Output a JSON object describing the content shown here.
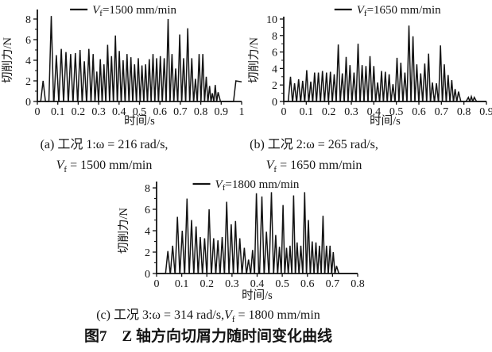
{
  "style": {
    "ink": "#141414",
    "background": "#ffffff"
  },
  "figure_title": "图7　Z 轴方向切屑力随时间变化曲线",
  "captions": {
    "a": {
      "line1": "(a) 工况 1:ω = 216 rad/s,",
      "vf_var": "V",
      "vf_sub": "f",
      "line2_rest": " = 1500 mm/min"
    },
    "b": {
      "line1": "(b) 工况 2:ω = 265 rad/s,",
      "vf_var": "V",
      "vf_sub": "f",
      "line2_rest": " = 1650 mm/min"
    },
    "c": {
      "prefix": "(c) 工况 3:ω = 314 rad/s,",
      "vf_var": "V",
      "vf_sub": "f",
      "rest": " = 1800 mm/min"
    }
  },
  "chart_data": [
    {
      "id": "a",
      "type": "line",
      "legend": {
        "var": "V",
        "sub": "f",
        "rest": "=1500 mm/min"
      },
      "xlabel": "时间/s",
      "ylabel": "切削力/N",
      "xlim": [
        0,
        1
      ],
      "ylim": [
        0,
        8
      ],
      "xticks": [
        "0",
        "0.1",
        "0.2",
        "0.3",
        "0.4",
        "0.5",
        "0.6",
        "0.7",
        "0.8",
        "0.9",
        "1"
      ],
      "yticks": [
        "0",
        "2",
        "4",
        "6",
        "8"
      ],
      "grid": false,
      "legend_position": "top",
      "peaks": [
        [
          0.028,
          2.0
        ],
        [
          0.068,
          8.3
        ],
        [
          0.093,
          4.5
        ],
        [
          0.117,
          5.1
        ],
        [
          0.14,
          4.8
        ],
        [
          0.163,
          4.6
        ],
        [
          0.186,
          4.7
        ],
        [
          0.209,
          5.0
        ],
        [
          0.23,
          3.9
        ],
        [
          0.252,
          5.1
        ],
        [
          0.273,
          4.6
        ],
        [
          0.291,
          2.9
        ],
        [
          0.308,
          4.1
        ],
        [
          0.326,
          3.6
        ],
        [
          0.344,
          5.5
        ],
        [
          0.363,
          4.4
        ],
        [
          0.382,
          6.4
        ],
        [
          0.401,
          4.9
        ],
        [
          0.42,
          4.0
        ],
        [
          0.439,
          4.6
        ],
        [
          0.458,
          4.3
        ],
        [
          0.476,
          3.6
        ],
        [
          0.494,
          4.2
        ],
        [
          0.512,
          3.5
        ],
        [
          0.53,
          3.6
        ],
        [
          0.548,
          4.1
        ],
        [
          0.566,
          4.6
        ],
        [
          0.584,
          4.2
        ],
        [
          0.602,
          4.4
        ],
        [
          0.621,
          4.2
        ],
        [
          0.64,
          8.0
        ],
        [
          0.659,
          4.6
        ],
        [
          0.677,
          3.2
        ],
        [
          0.697,
          6.5
        ],
        [
          0.716,
          4.2
        ],
        [
          0.736,
          7.1
        ],
        [
          0.756,
          4.2
        ],
        [
          0.774,
          2.2
        ],
        [
          0.792,
          4.6
        ],
        [
          0.81,
          4.6
        ],
        [
          0.827,
          2.4
        ],
        [
          0.843,
          1.5
        ],
        [
          0.857,
          0.8
        ],
        [
          0.871,
          1.6
        ],
        [
          0.885,
          0.9
        ],
        [
          0.972,
          2.0
        ]
      ],
      "end_value": 1.9
    },
    {
      "id": "b",
      "type": "line",
      "legend": {
        "var": "V",
        "sub": "f",
        "rest": "=1650 mm/min"
      },
      "xlabel": "时间/s",
      "ylabel": "切削力/N",
      "xlim": [
        0,
        0.9
      ],
      "ylim": [
        0,
        10
      ],
      "xticks": [
        "0",
        "0.1",
        "0.2",
        "0.3",
        "0.4",
        "0.5",
        "0.6",
        "0.7",
        "0.8",
        "0.9"
      ],
      "yticks": [
        "0",
        "2",
        "4",
        "6",
        "8",
        "10"
      ],
      "grid": false,
      "legend_position": "top",
      "peaks": [
        [
          0.03,
          3.0
        ],
        [
          0.048,
          2.2
        ],
        [
          0.066,
          2.7
        ],
        [
          0.084,
          2.5
        ],
        [
          0.102,
          3.8
        ],
        [
          0.12,
          2.4
        ],
        [
          0.137,
          3.5
        ],
        [
          0.154,
          3.5
        ],
        [
          0.172,
          3.7
        ],
        [
          0.19,
          3.5
        ],
        [
          0.207,
          3.6
        ],
        [
          0.224,
          3.3
        ],
        [
          0.242,
          6.9
        ],
        [
          0.26,
          3.4
        ],
        [
          0.277,
          5.4
        ],
        [
          0.294,
          4.4
        ],
        [
          0.312,
          3.5
        ],
        [
          0.33,
          7.0
        ],
        [
          0.348,
          4.4
        ],
        [
          0.365,
          4.3
        ],
        [
          0.383,
          5.5
        ],
        [
          0.4,
          4.3
        ],
        [
          0.417,
          2.3
        ],
        [
          0.434,
          3.7
        ],
        [
          0.451,
          3.6
        ],
        [
          0.468,
          3.3
        ],
        [
          0.485,
          2.1
        ],
        [
          0.503,
          5.3
        ],
        [
          0.52,
          4.7
        ],
        [
          0.538,
          3.5
        ],
        [
          0.556,
          9.2
        ],
        [
          0.574,
          7.9
        ],
        [
          0.591,
          4.5
        ],
        [
          0.608,
          3.4
        ],
        [
          0.626,
          4.6
        ],
        [
          0.643,
          5.8
        ],
        [
          0.66,
          2.3
        ],
        [
          0.678,
          2.2
        ],
        [
          0.696,
          6.8
        ],
        [
          0.713,
          4.5
        ],
        [
          0.73,
          3.2
        ],
        [
          0.746,
          2.6
        ],
        [
          0.761,
          1.5
        ],
        [
          0.776,
          1.2
        ],
        [
          0.82,
          0.5
        ],
        [
          0.833,
          0.6
        ],
        [
          0.846,
          0.5
        ]
      ],
      "end_value": null
    },
    {
      "id": "c",
      "type": "line",
      "legend": {
        "var": "V",
        "sub": "f",
        "rest": "=1800 mm/min"
      },
      "xlabel": "时间/s",
      "ylabel": "切削力/N",
      "xlim": [
        0,
        0.8
      ],
      "ylim": [
        0,
        8
      ],
      "xticks": [
        "0",
        "0.1",
        "0.2",
        "0.3",
        "0.4",
        "0.5",
        "0.6",
        "0.7",
        "0.8"
      ],
      "yticks": [
        "0",
        "2",
        "4",
        "6",
        "8"
      ],
      "grid": false,
      "legend_position": "top",
      "peaks": [
        [
          0.045,
          2.1
        ],
        [
          0.064,
          2.6
        ],
        [
          0.083,
          5.3
        ],
        [
          0.102,
          4.0
        ],
        [
          0.121,
          7.0
        ],
        [
          0.139,
          5.0
        ],
        [
          0.157,
          4.4
        ],
        [
          0.174,
          3.4
        ],
        [
          0.191,
          3.3
        ],
        [
          0.209,
          6.0
        ],
        [
          0.227,
          3.3
        ],
        [
          0.244,
          3.1
        ],
        [
          0.261,
          3.4
        ],
        [
          0.279,
          6.7
        ],
        [
          0.297,
          4.6
        ],
        [
          0.314,
          4.9
        ],
        [
          0.331,
          3.3
        ],
        [
          0.349,
          2.4
        ],
        [
          0.366,
          1.3
        ],
        [
          0.382,
          2.2
        ],
        [
          0.397,
          7.5
        ],
        [
          0.419,
          7.2
        ],
        [
          0.437,
          3.9
        ],
        [
          0.457,
          7.6
        ],
        [
          0.474,
          3.6
        ],
        [
          0.489,
          2.5
        ],
        [
          0.503,
          6.4
        ],
        [
          0.517,
          2.4
        ],
        [
          0.531,
          2.6
        ],
        [
          0.545,
          7.3
        ],
        [
          0.559,
          2.9
        ],
        [
          0.574,
          2.6
        ],
        [
          0.589,
          7.6
        ],
        [
          0.604,
          5.0
        ],
        [
          0.619,
          3.0
        ],
        [
          0.634,
          2.9
        ],
        [
          0.648,
          2.6
        ],
        [
          0.662,
          5.4
        ],
        [
          0.676,
          2.6
        ],
        [
          0.69,
          2.6
        ],
        [
          0.703,
          2.0
        ],
        [
          0.716,
          0.7
        ]
      ],
      "end_value": null
    }
  ]
}
